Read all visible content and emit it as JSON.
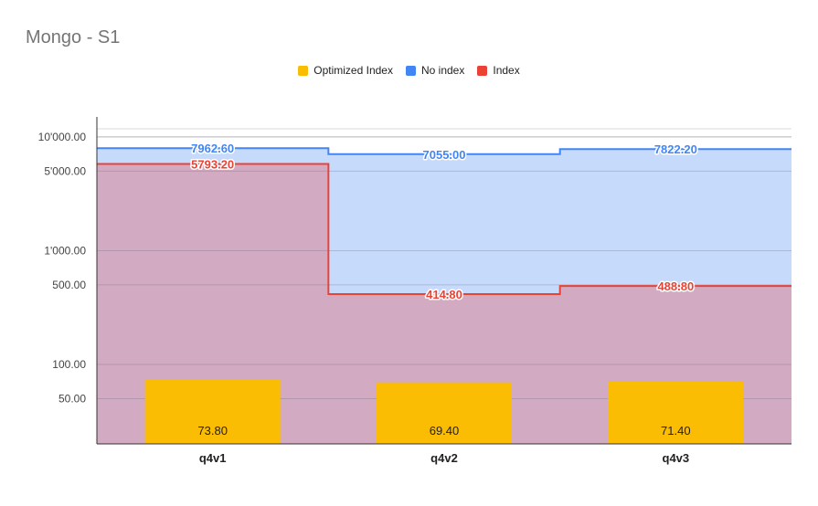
{
  "chart_data": {
    "type": "bar",
    "title": "Mongo - S1",
    "categories": [
      "q4v1",
      "q4v2",
      "q4v3"
    ],
    "y_scale": "log",
    "ylim": [
      20,
      15000
    ],
    "y_ticks": [
      50,
      100,
      500,
      1000,
      5000,
      10000
    ],
    "y_tick_labels": [
      "50.00",
      "100.00",
      "500.00",
      "1'000.00",
      "5'000.00",
      "10'000.00"
    ],
    "legend_position": "top",
    "grid": true,
    "series": [
      {
        "name": "Optimized Index",
        "chart_type": "bar",
        "color": "#fbbc04",
        "values": [
          73.8,
          69.4,
          71.4
        ],
        "labels": [
          "73.80",
          "69.40",
          "71.40"
        ]
      },
      {
        "name": "No index",
        "chart_type": "stepped-area",
        "color": "#4285f4",
        "fill": "#c6dafc",
        "values": [
          7962.6,
          7055.0,
          7822.2
        ],
        "labels": [
          "7962.60",
          "7055.00",
          "7822.20"
        ]
      },
      {
        "name": "Index",
        "chart_type": "stepped-area",
        "color": "#ea4335",
        "fill": "#d2aac2",
        "values": [
          5793.2,
          414.8,
          488.8
        ],
        "labels": [
          "5793.20",
          "414.80",
          "488.80"
        ]
      }
    ]
  }
}
